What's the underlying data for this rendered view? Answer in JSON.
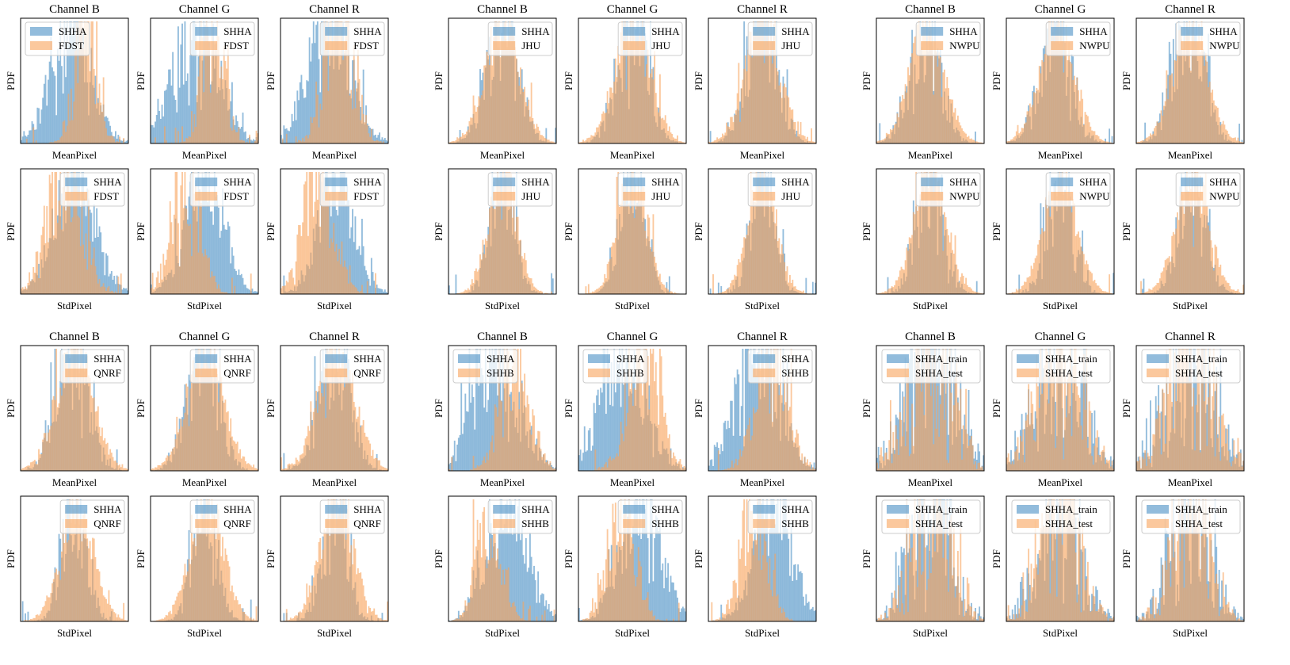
{
  "figure": {
    "labels": {
      "ylabel": "PDF",
      "xlabel_mean": "MeanPixel",
      "xlabel_std": "StdPixel",
      "channels": [
        "Channel B",
        "Channel G",
        "Channel R"
      ]
    },
    "colors": {
      "reference": "#4a90c4",
      "compare": "#f9a45c",
      "reference_alpha": 0.6,
      "compare_alpha": 0.6
    }
  },
  "chart_data": [
    {
      "type": "bar",
      "group": "SHHA vs FDST",
      "row": "mean",
      "channel": "Channel B",
      "title": "Channel B",
      "xlabel": "MeanPixel",
      "ylabel": "PDF",
      "legend": [
        "SHHA",
        "FDST"
      ],
      "legend_loc": "upper-left",
      "shape_a": {
        "mu": 0.47,
        "sigma": 0.18,
        "noise": 0.45
      },
      "shape_b": {
        "mu": 0.6,
        "sigma": 0.1,
        "noise": 0.6
      }
    },
    {
      "type": "bar",
      "group": "SHHA vs FDST",
      "row": "mean",
      "channel": "Channel G",
      "title": "Channel G",
      "xlabel": "MeanPixel",
      "ylabel": "PDF",
      "legend": [
        "SHHA",
        "FDST"
      ],
      "legend_loc": "upper-right",
      "shape_a": {
        "mu": 0.42,
        "sigma": 0.2,
        "noise": 0.45
      },
      "shape_b": {
        "mu": 0.58,
        "sigma": 0.1,
        "noise": 0.6
      }
    },
    {
      "type": "bar",
      "group": "SHHA vs FDST",
      "row": "mean",
      "channel": "Channel R",
      "title": "Channel R",
      "xlabel": "MeanPixel",
      "ylabel": "PDF",
      "legend": [
        "SHHA",
        "FDST"
      ],
      "legend_loc": "upper-right",
      "shape_a": {
        "mu": 0.45,
        "sigma": 0.2,
        "noise": 0.45
      },
      "shape_b": {
        "mu": 0.55,
        "sigma": 0.13,
        "noise": 0.6
      }
    },
    {
      "type": "bar",
      "group": "SHHA vs FDST",
      "row": "std",
      "channel": "Channel B",
      "title": "",
      "xlabel": "StdPixel",
      "ylabel": "PDF",
      "legend": [
        "SHHA",
        "FDST"
      ],
      "legend_loc": "upper-right",
      "shape_a": {
        "mu": 0.5,
        "sigma": 0.18,
        "noise": 0.4
      },
      "shape_b": {
        "mu": 0.4,
        "sigma": 0.16,
        "noise": 0.5
      }
    },
    {
      "type": "bar",
      "group": "SHHA vs FDST",
      "row": "std",
      "channel": "Channel G",
      "title": "",
      "xlabel": "StdPixel",
      "ylabel": "PDF",
      "legend": [
        "SHHA",
        "FDST"
      ],
      "legend_loc": "upper-right",
      "shape_a": {
        "mu": 0.5,
        "sigma": 0.17,
        "noise": 0.4
      },
      "shape_b": {
        "mu": 0.32,
        "sigma": 0.13,
        "noise": 0.5
      }
    },
    {
      "type": "bar",
      "group": "SHHA vs FDST",
      "row": "std",
      "channel": "Channel R",
      "title": "",
      "xlabel": "StdPixel",
      "ylabel": "PDF",
      "legend": [
        "SHHA",
        "FDST"
      ],
      "legend_loc": "upper-right",
      "shape_a": {
        "mu": 0.52,
        "sigma": 0.16,
        "noise": 0.4
      },
      "shape_b": {
        "mu": 0.35,
        "sigma": 0.14,
        "noise": 0.5
      }
    },
    {
      "type": "bar",
      "group": "SHHA vs JHU",
      "row": "mean",
      "channel": "Channel B",
      "title": "Channel B",
      "xlabel": "MeanPixel",
      "ylabel": "PDF",
      "legend": [
        "SHHA",
        "JHU"
      ],
      "legend_loc": "upper-right",
      "shape_a": {
        "mu": 0.5,
        "sigma": 0.14,
        "noise": 0.5
      },
      "shape_b": {
        "mu": 0.5,
        "sigma": 0.16,
        "noise": 0.25
      }
    },
    {
      "type": "bar",
      "group": "SHHA vs JHU",
      "row": "mean",
      "channel": "Channel G",
      "title": "Channel G",
      "xlabel": "MeanPixel",
      "ylabel": "PDF",
      "legend": [
        "SHHA",
        "JHU"
      ],
      "legend_loc": "upper-right",
      "shape_a": {
        "mu": 0.5,
        "sigma": 0.14,
        "noise": 0.5
      },
      "shape_b": {
        "mu": 0.5,
        "sigma": 0.16,
        "noise": 0.25
      }
    },
    {
      "type": "bar",
      "group": "SHHA vs JHU",
      "row": "mean",
      "channel": "Channel R",
      "title": "Channel R",
      "xlabel": "MeanPixel",
      "ylabel": "PDF",
      "legend": [
        "SHHA",
        "JHU"
      ],
      "legend_loc": "upper-right",
      "shape_a": {
        "mu": 0.5,
        "sigma": 0.14,
        "noise": 0.5
      },
      "shape_b": {
        "mu": 0.5,
        "sigma": 0.16,
        "noise": 0.25
      }
    },
    {
      "type": "bar",
      "group": "SHHA vs JHU",
      "row": "std",
      "channel": "Channel B",
      "title": "",
      "xlabel": "StdPixel",
      "ylabel": "PDF",
      "legend": [
        "SHHA",
        "JHU"
      ],
      "legend_loc": "upper-right",
      "shape_a": {
        "mu": 0.5,
        "sigma": 0.11,
        "noise": 0.5
      },
      "shape_b": {
        "mu": 0.5,
        "sigma": 0.13,
        "noise": 0.25
      }
    },
    {
      "type": "bar",
      "group": "SHHA vs JHU",
      "row": "std",
      "channel": "Channel G",
      "title": "",
      "xlabel": "StdPixel",
      "ylabel": "PDF",
      "legend": [
        "SHHA",
        "JHU"
      ],
      "legend_loc": "upper-right",
      "shape_a": {
        "mu": 0.5,
        "sigma": 0.11,
        "noise": 0.5
      },
      "shape_b": {
        "mu": 0.5,
        "sigma": 0.13,
        "noise": 0.25
      }
    },
    {
      "type": "bar",
      "group": "SHHA vs JHU",
      "row": "std",
      "channel": "Channel R",
      "title": "",
      "xlabel": "StdPixel",
      "ylabel": "PDF",
      "legend": [
        "SHHA",
        "JHU"
      ],
      "legend_loc": "upper-right",
      "shape_a": {
        "mu": 0.5,
        "sigma": 0.11,
        "noise": 0.5
      },
      "shape_b": {
        "mu": 0.5,
        "sigma": 0.13,
        "noise": 0.25
      }
    },
    {
      "type": "bar",
      "group": "SHHA vs NWPU",
      "row": "mean",
      "channel": "Channel B",
      "title": "Channel B",
      "xlabel": "MeanPixel",
      "ylabel": "PDF",
      "legend": [
        "SHHA",
        "NWPU"
      ],
      "legend_loc": "upper-right",
      "shape_a": {
        "mu": 0.45,
        "sigma": 0.14,
        "noise": 0.5
      },
      "shape_b": {
        "mu": 0.47,
        "sigma": 0.16,
        "noise": 0.2
      }
    },
    {
      "type": "bar",
      "group": "SHHA vs NWPU",
      "row": "mean",
      "channel": "Channel G",
      "title": "Channel G",
      "xlabel": "MeanPixel",
      "ylabel": "PDF",
      "legend": [
        "SHHA",
        "NWPU"
      ],
      "legend_loc": "upper-right",
      "shape_a": {
        "mu": 0.45,
        "sigma": 0.14,
        "noise": 0.5
      },
      "shape_b": {
        "mu": 0.47,
        "sigma": 0.16,
        "noise": 0.2
      }
    },
    {
      "type": "bar",
      "group": "SHHA vs NWPU",
      "row": "mean",
      "channel": "Channel R",
      "title": "Channel R",
      "xlabel": "MeanPixel",
      "ylabel": "PDF",
      "legend": [
        "SHHA",
        "NWPU"
      ],
      "legend_loc": "upper-right",
      "shape_a": {
        "mu": 0.48,
        "sigma": 0.14,
        "noise": 0.5
      },
      "shape_b": {
        "mu": 0.5,
        "sigma": 0.16,
        "noise": 0.2
      }
    },
    {
      "type": "bar",
      "group": "SHHA vs NWPU",
      "row": "std",
      "channel": "Channel B",
      "title": "",
      "xlabel": "StdPixel",
      "ylabel": "PDF",
      "legend": [
        "SHHA",
        "NWPU"
      ],
      "legend_loc": "upper-right",
      "shape_a": {
        "mu": 0.5,
        "sigma": 0.12,
        "noise": 0.5
      },
      "shape_b": {
        "mu": 0.5,
        "sigma": 0.15,
        "noise": 0.2
      }
    },
    {
      "type": "bar",
      "group": "SHHA vs NWPU",
      "row": "std",
      "channel": "Channel G",
      "title": "",
      "xlabel": "StdPixel",
      "ylabel": "PDF",
      "legend": [
        "SHHA",
        "NWPU"
      ],
      "legend_loc": "upper-right",
      "shape_a": {
        "mu": 0.5,
        "sigma": 0.12,
        "noise": 0.5
      },
      "shape_b": {
        "mu": 0.5,
        "sigma": 0.15,
        "noise": 0.2
      }
    },
    {
      "type": "bar",
      "group": "SHHA vs NWPU",
      "row": "std",
      "channel": "Channel R",
      "title": "",
      "xlabel": "StdPixel",
      "ylabel": "PDF",
      "legend": [
        "SHHA",
        "NWPU"
      ],
      "legend_loc": "upper-right",
      "shape_a": {
        "mu": 0.52,
        "sigma": 0.12,
        "noise": 0.5
      },
      "shape_b": {
        "mu": 0.52,
        "sigma": 0.15,
        "noise": 0.2
      }
    },
    {
      "type": "bar",
      "group": "SHHA vs QNRF",
      "row": "mean",
      "channel": "Channel B",
      "title": "Channel B",
      "xlabel": "MeanPixel",
      "ylabel": "PDF",
      "legend": [
        "SHHA",
        "QNRF"
      ],
      "legend_loc": "upper-right",
      "shape_a": {
        "mu": 0.48,
        "sigma": 0.14,
        "noise": 0.5
      },
      "shape_b": {
        "mu": 0.5,
        "sigma": 0.17,
        "noise": 0.25
      }
    },
    {
      "type": "bar",
      "group": "SHHA vs QNRF",
      "row": "mean",
      "channel": "Channel G",
      "title": "Channel G",
      "xlabel": "MeanPixel",
      "ylabel": "PDF",
      "legend": [
        "SHHA",
        "QNRF"
      ],
      "legend_loc": "upper-right",
      "shape_a": {
        "mu": 0.48,
        "sigma": 0.14,
        "noise": 0.5
      },
      "shape_b": {
        "mu": 0.5,
        "sigma": 0.17,
        "noise": 0.25
      }
    },
    {
      "type": "bar",
      "group": "SHHA vs QNRF",
      "row": "mean",
      "channel": "Channel R",
      "title": "Channel R",
      "xlabel": "MeanPixel",
      "ylabel": "PDF",
      "legend": [
        "SHHA",
        "QNRF"
      ],
      "legend_loc": "upper-right",
      "shape_a": {
        "mu": 0.5,
        "sigma": 0.14,
        "noise": 0.5
      },
      "shape_b": {
        "mu": 0.52,
        "sigma": 0.17,
        "noise": 0.25
      }
    },
    {
      "type": "bar",
      "group": "SHHA vs QNRF",
      "row": "std",
      "channel": "Channel B",
      "title": "",
      "xlabel": "StdPixel",
      "ylabel": "PDF",
      "legend": [
        "SHHA",
        "QNRF"
      ],
      "legend_loc": "upper-right",
      "shape_a": {
        "mu": 0.5,
        "sigma": 0.11,
        "noise": 0.5
      },
      "shape_b": {
        "mu": 0.52,
        "sigma": 0.15,
        "noise": 0.25
      }
    },
    {
      "type": "bar",
      "group": "SHHA vs QNRF",
      "row": "std",
      "channel": "Channel G",
      "title": "",
      "xlabel": "StdPixel",
      "ylabel": "PDF",
      "legend": [
        "SHHA",
        "QNRF"
      ],
      "legend_loc": "upper-right",
      "shape_a": {
        "mu": 0.5,
        "sigma": 0.11,
        "noise": 0.5
      },
      "shape_b": {
        "mu": 0.52,
        "sigma": 0.15,
        "noise": 0.25
      }
    },
    {
      "type": "bar",
      "group": "SHHA vs QNRF",
      "row": "std",
      "channel": "Channel R",
      "title": "",
      "xlabel": "StdPixel",
      "ylabel": "PDF",
      "legend": [
        "SHHA",
        "QNRF"
      ],
      "legend_loc": "upper-right",
      "shape_a": {
        "mu": 0.5,
        "sigma": 0.11,
        "noise": 0.5
      },
      "shape_b": {
        "mu": 0.52,
        "sigma": 0.15,
        "noise": 0.25
      }
    },
    {
      "type": "bar",
      "group": "SHHA vs SHHB",
      "row": "mean",
      "channel": "Channel B",
      "title": "Channel B",
      "xlabel": "MeanPixel",
      "ylabel": "PDF",
      "legend": [
        "SHHA",
        "SHHB"
      ],
      "legend_loc": "upper-left",
      "shape_a": {
        "mu": 0.45,
        "sigma": 0.2,
        "noise": 0.5
      },
      "shape_b": {
        "mu": 0.62,
        "sigma": 0.13,
        "noise": 0.5
      }
    },
    {
      "type": "bar",
      "group": "SHHA vs SHHB",
      "row": "mean",
      "channel": "Channel G",
      "title": "Channel G",
      "xlabel": "MeanPixel",
      "ylabel": "PDF",
      "legend": [
        "SHHA",
        "SHHB"
      ],
      "legend_loc": "upper-left",
      "shape_a": {
        "mu": 0.42,
        "sigma": 0.2,
        "noise": 0.5
      },
      "shape_b": {
        "mu": 0.6,
        "sigma": 0.14,
        "noise": 0.5
      }
    },
    {
      "type": "bar",
      "group": "SHHA vs SHHB",
      "row": "mean",
      "channel": "Channel R",
      "title": "Channel R",
      "xlabel": "MeanPixel",
      "ylabel": "PDF",
      "legend": [
        "SHHA",
        "SHHB"
      ],
      "legend_loc": "upper-right",
      "shape_a": {
        "mu": 0.45,
        "sigma": 0.2,
        "noise": 0.5
      },
      "shape_b": {
        "mu": 0.58,
        "sigma": 0.14,
        "noise": 0.5
      }
    },
    {
      "type": "bar",
      "group": "SHHA vs SHHB",
      "row": "std",
      "channel": "Channel B",
      "title": "",
      "xlabel": "StdPixel",
      "ylabel": "PDF",
      "legend": [
        "SHHA",
        "SHHB"
      ],
      "legend_loc": "upper-right",
      "shape_a": {
        "mu": 0.55,
        "sigma": 0.18,
        "noise": 0.45
      },
      "shape_b": {
        "mu": 0.38,
        "sigma": 0.11,
        "noise": 0.5
      }
    },
    {
      "type": "bar",
      "group": "SHHA vs SHHB",
      "row": "std",
      "channel": "Channel G",
      "title": "",
      "xlabel": "StdPixel",
      "ylabel": "PDF",
      "legend": [
        "SHHA",
        "SHHB"
      ],
      "legend_loc": "upper-right",
      "shape_a": {
        "mu": 0.58,
        "sigma": 0.18,
        "noise": 0.45
      },
      "shape_b": {
        "mu": 0.4,
        "sigma": 0.12,
        "noise": 0.5
      }
    },
    {
      "type": "bar",
      "group": "SHHA vs SHHB",
      "row": "std",
      "channel": "Channel R",
      "title": "",
      "xlabel": "StdPixel",
      "ylabel": "PDF",
      "legend": [
        "SHHA",
        "SHHB"
      ],
      "legend_loc": "upper-right",
      "shape_a": {
        "mu": 0.6,
        "sigma": 0.17,
        "noise": 0.45
      },
      "shape_b": {
        "mu": 0.42,
        "sigma": 0.12,
        "noise": 0.5
      }
    },
    {
      "type": "bar",
      "group": "SHHA_train vs SHHA_test",
      "row": "mean",
      "channel": "Channel B",
      "title": "Channel B",
      "xlabel": "MeanPixel",
      "ylabel": "PDF",
      "legend": [
        "SHHA_train",
        "SHHA_test"
      ],
      "legend_loc": "upper-right",
      "shape_a": {
        "mu": 0.5,
        "sigma": 0.22,
        "noise": 0.85
      },
      "shape_b": {
        "mu": 0.5,
        "sigma": 0.2,
        "noise": 0.85
      }
    },
    {
      "type": "bar",
      "group": "SHHA_train vs SHHA_test",
      "row": "mean",
      "channel": "Channel G",
      "title": "Channel G",
      "xlabel": "MeanPixel",
      "ylabel": "PDF",
      "legend": [
        "SHHA_train",
        "SHHA_test"
      ],
      "legend_loc": "upper-right",
      "shape_a": {
        "mu": 0.5,
        "sigma": 0.22,
        "noise": 0.85
      },
      "shape_b": {
        "mu": 0.5,
        "sigma": 0.2,
        "noise": 0.85
      }
    },
    {
      "type": "bar",
      "group": "SHHA_train vs SHHA_test",
      "row": "mean",
      "channel": "Channel R",
      "title": "Channel R",
      "xlabel": "MeanPixel",
      "ylabel": "PDF",
      "legend": [
        "SHHA_train",
        "SHHA_test"
      ],
      "legend_loc": "upper-right",
      "shape_a": {
        "mu": 0.5,
        "sigma": 0.22,
        "noise": 0.85
      },
      "shape_b": {
        "mu": 0.5,
        "sigma": 0.2,
        "noise": 0.85
      }
    },
    {
      "type": "bar",
      "group": "SHHA_train vs SHHA_test",
      "row": "std",
      "channel": "Channel B",
      "title": "",
      "xlabel": "StdPixel",
      "ylabel": "PDF",
      "legend": [
        "SHHA_train",
        "SHHA_test"
      ],
      "legend_loc": "upper-right",
      "shape_a": {
        "mu": 0.5,
        "sigma": 0.18,
        "noise": 0.85
      },
      "shape_b": {
        "mu": 0.5,
        "sigma": 0.17,
        "noise": 0.85
      }
    },
    {
      "type": "bar",
      "group": "SHHA_train vs SHHA_test",
      "row": "std",
      "channel": "Channel G",
      "title": "",
      "xlabel": "StdPixel",
      "ylabel": "PDF",
      "legend": [
        "SHHA_train",
        "SHHA_test"
      ],
      "legend_loc": "upper-right",
      "shape_a": {
        "mu": 0.5,
        "sigma": 0.18,
        "noise": 0.85
      },
      "shape_b": {
        "mu": 0.5,
        "sigma": 0.17,
        "noise": 0.85
      }
    },
    {
      "type": "bar",
      "group": "SHHA_train vs SHHA_test",
      "row": "std",
      "channel": "Channel R",
      "title": "",
      "xlabel": "StdPixel",
      "ylabel": "PDF",
      "legend": [
        "SHHA_train",
        "SHHA_test"
      ],
      "legend_loc": "upper-right",
      "shape_a": {
        "mu": 0.5,
        "sigma": 0.18,
        "noise": 0.85
      },
      "shape_b": {
        "mu": 0.5,
        "sigma": 0.17,
        "noise": 0.85
      }
    }
  ]
}
